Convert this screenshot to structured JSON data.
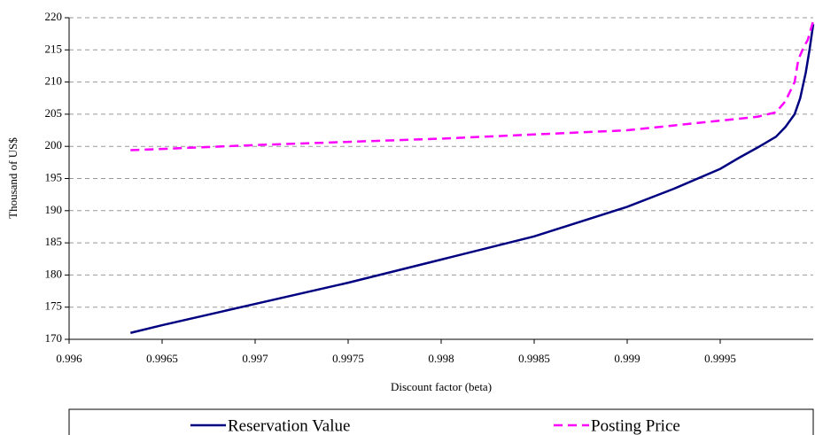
{
  "chart_data": {
    "type": "line",
    "x_label": "Discount factor (beta)",
    "y_label": "Thousand of US$",
    "xlim": [
      0.996,
      1
    ],
    "xticks": [
      0.996,
      0.9965,
      0.997,
      0.9975,
      0.998,
      0.9985,
      0.999,
      0.9995
    ],
    "ylim": [
      170,
      220
    ],
    "yticks": [
      170,
      175,
      180,
      185,
      190,
      195,
      200,
      205,
      210,
      215,
      220
    ],
    "grid": true,
    "legend": "bottom",
    "series": [
      {
        "name": "Reservation Value",
        "color": "#000080",
        "dash": "solid",
        "x": [
          0.99633,
          0.9965,
          0.997,
          0.9975,
          0.998,
          0.9985,
          0.999,
          0.99925,
          0.9995,
          0.9996,
          0.9997,
          0.9998,
          0.99985,
          0.9999,
          0.99993,
          0.99996,
          0.99998,
          1
        ],
        "values": [
          171,
          172.2,
          175.5,
          178.8,
          182.4,
          186,
          190.6,
          193.4,
          196.5,
          198.2,
          199.8,
          201.5,
          203,
          205,
          207.5,
          211.5,
          215,
          219
        ]
      },
      {
        "name": "Posting Price",
        "color": "#ff00ff",
        "dash": "dashed",
        "x": [
          0.99633,
          0.997,
          0.998,
          0.999,
          0.9995,
          0.9997,
          0.9998,
          0.99985,
          0.9999,
          0.99992,
          0.99995,
          0.99997,
          1
        ],
        "values": [
          199.4,
          200.2,
          201.2,
          202.5,
          204,
          204.6,
          205.3,
          207,
          210,
          213.5,
          215.5,
          216.5,
          219.5
        ]
      }
    ]
  }
}
